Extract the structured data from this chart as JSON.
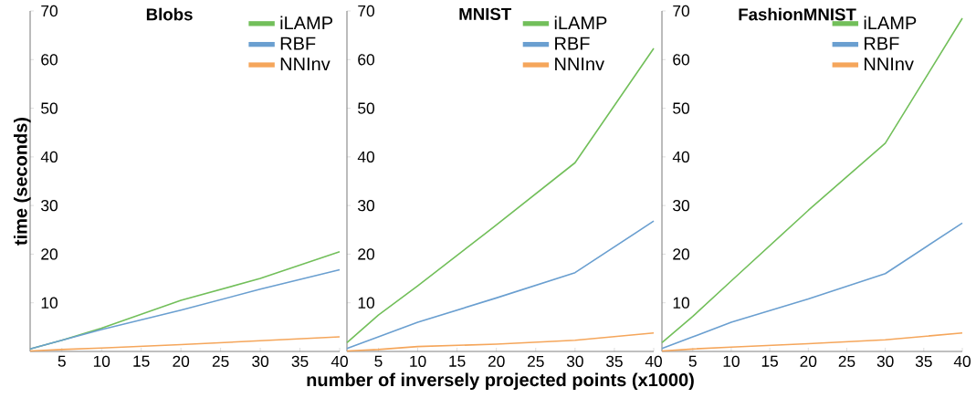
{
  "chart_data": [
    {
      "type": "line",
      "title": "Blobs",
      "ylabel": "time (seconds)",
      "x": [
        1,
        5,
        10,
        20,
        30,
        40
      ],
      "series": [
        {
          "name": "iLAMP",
          "color": "#72bf5a",
          "values": [
            0.5,
            2.3,
            4.8,
            10.5,
            15,
            20.5
          ]
        },
        {
          "name": "RBF",
          "color": "#6a9fd0",
          "values": [
            0.5,
            2.3,
            4.5,
            8.5,
            12.8,
            16.8
          ]
        },
        {
          "name": "NNInv",
          "color": "#f5a65b",
          "values": [
            0.1,
            0.4,
            0.7,
            1.4,
            2.2,
            3.0
          ]
        }
      ],
      "xlim": [
        1,
        40
      ],
      "xticks": [
        5,
        10,
        15,
        20,
        25,
        30,
        35,
        40
      ],
      "ylim": [
        0,
        70
      ],
      "yticks": [
        10,
        20,
        30,
        40,
        50,
        60,
        70
      ],
      "legend": "top right",
      "grid": false
    },
    {
      "type": "line",
      "title": "MNIST",
      "xlabel": "number of inversely projected points (x1000)",
      "x": [
        1,
        5,
        10,
        20,
        30,
        40
      ],
      "series": [
        {
          "name": "iLAMP",
          "color": "#72bf5a",
          "values": [
            1.8,
            7.5,
            13.5,
            26,
            38.8,
            62.3
          ]
        },
        {
          "name": "RBF",
          "color": "#6a9fd0",
          "values": [
            0.6,
            3,
            6,
            11,
            16.2,
            26.8
          ]
        },
        {
          "name": "NNInv",
          "color": "#f5a65b",
          "values": [
            0.1,
            0.4,
            1.0,
            1.5,
            2.3,
            3.8
          ]
        }
      ],
      "xlim": [
        1,
        40
      ],
      "xticks": [
        5,
        10,
        15,
        20,
        25,
        30,
        35,
        40
      ],
      "ylim": [
        0,
        70
      ],
      "yticks": [
        10,
        20,
        30,
        40,
        50,
        60,
        70
      ],
      "legend": "top right",
      "grid": false
    },
    {
      "type": "line",
      "title": "FashionMNIST",
      "x": [
        1,
        5,
        10,
        20,
        30,
        40
      ],
      "series": [
        {
          "name": "iLAMP",
          "color": "#72bf5a",
          "values": [
            1.8,
            7.2,
            14.5,
            29,
            42.8,
            68.5
          ]
        },
        {
          "name": "RBF",
          "color": "#6a9fd0",
          "values": [
            0.6,
            3,
            6,
            10.8,
            16,
            26.4
          ]
        },
        {
          "name": "NNInv",
          "color": "#f5a65b",
          "values": [
            0.1,
            0.5,
            0.9,
            1.6,
            2.4,
            3.8
          ]
        }
      ],
      "xlim": [
        1,
        40
      ],
      "xticks": [
        5,
        10,
        15,
        20,
        25,
        30,
        35,
        40
      ],
      "ylim": [
        0,
        70
      ],
      "yticks": [
        10,
        20,
        30,
        40,
        50,
        60,
        70
      ],
      "legend": "top right",
      "grid": false
    }
  ]
}
